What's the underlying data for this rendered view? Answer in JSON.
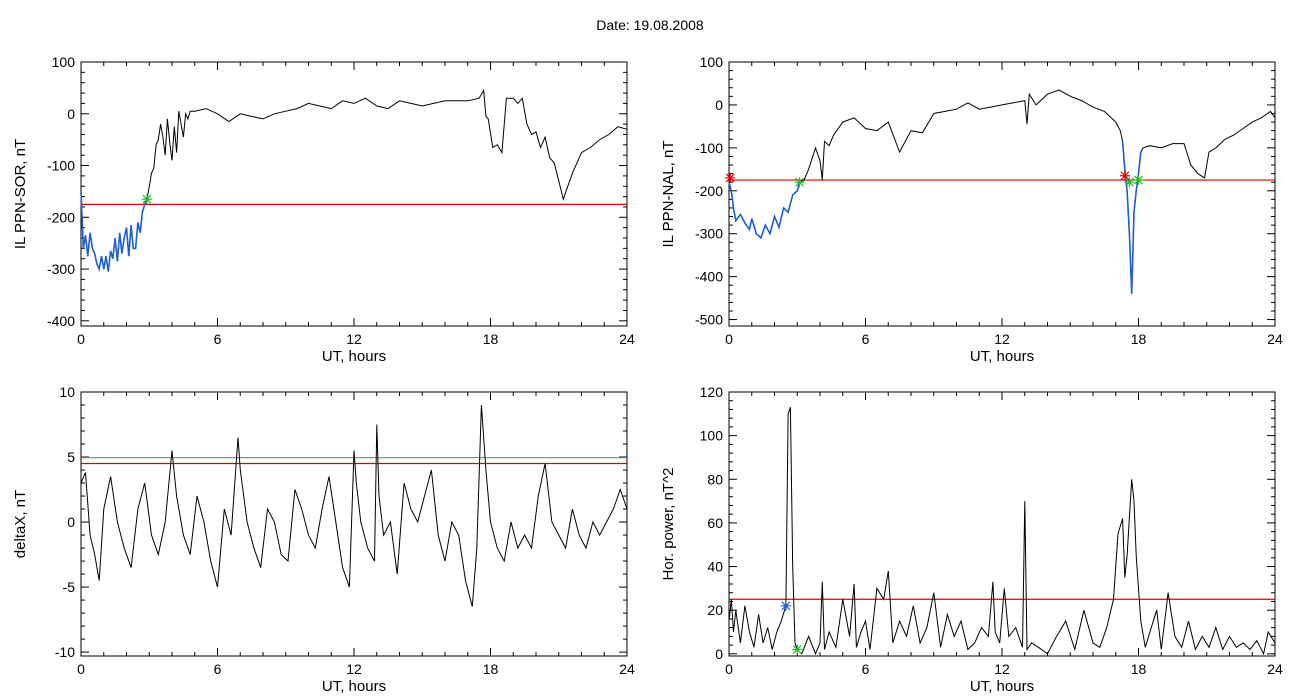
{
  "header": {
    "date_label": "Date:  19.08.2008"
  },
  "colors": {
    "trace": "#000000",
    "threshold": "#dd0000",
    "threshold2": "#3aa0a0",
    "highlight": "#1f5fcf",
    "marker_green": "#22bb22",
    "marker_red": "#dd0000"
  },
  "chart_data": [
    {
      "type": "line",
      "title": "",
      "xlabel": "UT, hours",
      "ylabel": "IL PPN-SOR, nT",
      "xlim": [
        0,
        24
      ],
      "ylim": [
        -410,
        100
      ],
      "xticks": [
        0,
        6,
        12,
        18,
        24
      ],
      "yticks": [
        -400,
        -300,
        -200,
        -100,
        0,
        100
      ],
      "threshold": -175,
      "highlight_range": [
        0,
        2.9
      ],
      "markers": [
        {
          "x": 2.9,
          "y": -165,
          "color": "green"
        }
      ],
      "series": [
        {
          "x": [
            0,
            0.1,
            0.2,
            0.3,
            0.4,
            0.5,
            0.6,
            0.7,
            0.8,
            0.9,
            1.0,
            1.1,
            1.2,
            1.3,
            1.4,
            1.5,
            1.6,
            1.7,
            1.8,
            1.9,
            2.0,
            2.1,
            2.2,
            2.3,
            2.4,
            2.5,
            2.6,
            2.7,
            2.8,
            2.9,
            3.0,
            3.1,
            3.2,
            3.3,
            3.4,
            3.5,
            3.6,
            3.7,
            3.8,
            3.9,
            4.0,
            4.1,
            4.2,
            4.3,
            4.4,
            4.5,
            4.6,
            4.7,
            4.8,
            5.0,
            5.5,
            6.0,
            6.5,
            7.0,
            7.5,
            8.0,
            8.5,
            9.0,
            9.5,
            10.0,
            10.5,
            11.0,
            11.5,
            12.0,
            12.5,
            13.0,
            13.5,
            14.0,
            14.5,
            15.0,
            15.5,
            16.0,
            16.5,
            17.0,
            17.5,
            17.7,
            17.8,
            17.9,
            18.1,
            18.3,
            18.5,
            18.7,
            19.0,
            19.2,
            19.4,
            19.6,
            19.8,
            20.0,
            20.2,
            20.4,
            20.6,
            20.8,
            21.0,
            21.2,
            21.4,
            21.6,
            22.0,
            22.4,
            22.8,
            23.2,
            23.6,
            24.0
          ],
          "values": [
            -150,
            -260,
            -235,
            -275,
            -230,
            -260,
            -270,
            -290,
            -300,
            -275,
            -300,
            -275,
            -305,
            -265,
            -280,
            -240,
            -285,
            -230,
            -270,
            -240,
            -220,
            -275,
            -215,
            -260,
            -260,
            -210,
            -230,
            -190,
            -175,
            -165,
            -140,
            -115,
            -105,
            -60,
            -50,
            -20,
            -45,
            -80,
            -10,
            -55,
            -90,
            -25,
            -75,
            5,
            -20,
            -45,
            0,
            -10,
            5,
            5,
            10,
            0,
            -15,
            0,
            -5,
            -10,
            0,
            5,
            10,
            20,
            15,
            10,
            25,
            20,
            30,
            15,
            10,
            25,
            20,
            15,
            20,
            25,
            25,
            25,
            30,
            45,
            -5,
            -10,
            -65,
            -60,
            -75,
            30,
            30,
            20,
            30,
            -20,
            -40,
            -35,
            -65,
            -45,
            -85,
            -95,
            -130,
            -165,
            -140,
            -115,
            -75,
            -65,
            -50,
            -40,
            -25,
            -30
          ]
        }
      ]
    },
    {
      "type": "line",
      "title": "",
      "xlabel": "UT, hours",
      "ylabel": "IL PPN-NAL, nT",
      "xlim": [
        0,
        24
      ],
      "ylim": [
        -515,
        100
      ],
      "xticks": [
        0,
        6,
        12,
        18,
        24
      ],
      "yticks": [
        -500,
        -400,
        -300,
        -200,
        -100,
        0,
        100
      ],
      "threshold": -175,
      "highlight_ranges": [
        [
          0,
          3.1
        ],
        [
          17.3,
          18.1
        ]
      ],
      "markers": [
        {
          "x": 0.05,
          "y": -170,
          "color": "red"
        },
        {
          "x": 3.1,
          "y": -180,
          "color": "green"
        },
        {
          "x": 17.4,
          "y": -165,
          "color": "red"
        },
        {
          "x": 17.6,
          "y": -180,
          "color": "green"
        },
        {
          "x": 18.0,
          "y": -175,
          "color": "green"
        }
      ],
      "series": [
        {
          "x": [
            0,
            0.1,
            0.2,
            0.3,
            0.5,
            0.7,
            0.9,
            1.0,
            1.2,
            1.4,
            1.6,
            1.8,
            2.0,
            2.2,
            2.4,
            2.6,
            2.8,
            3.0,
            3.1,
            3.3,
            3.5,
            3.8,
            4.0,
            4.1,
            4.2,
            4.4,
            4.6,
            5.0,
            5.5,
            6.0,
            6.5,
            7.0,
            7.5,
            8.0,
            8.5,
            9.0,
            9.5,
            10.0,
            10.5,
            11.0,
            11.5,
            12.0,
            12.5,
            13.0,
            13.1,
            13.2,
            13.5,
            14.0,
            14.5,
            15.0,
            15.5,
            16.0,
            16.5,
            17.0,
            17.2,
            17.3,
            17.4,
            17.5,
            17.6,
            17.7,
            17.8,
            17.9,
            18.0,
            18.1,
            18.2,
            18.5,
            19.0,
            19.5,
            20.0,
            20.3,
            20.6,
            20.9,
            21.1,
            21.4,
            21.8,
            22.2,
            22.6,
            23.0,
            23.4,
            23.8,
            24.0
          ],
          "values": [
            -180,
            -200,
            -240,
            -270,
            -255,
            -275,
            -290,
            -265,
            -300,
            -310,
            -280,
            -300,
            -260,
            -285,
            -240,
            -250,
            -210,
            -200,
            -180,
            -175,
            -150,
            -100,
            -130,
            -175,
            -85,
            -95,
            -70,
            -40,
            -30,
            -55,
            -60,
            -40,
            -110,
            -60,
            -65,
            -20,
            -15,
            -10,
            5,
            -10,
            -5,
            0,
            5,
            10,
            -45,
            25,
            0,
            25,
            35,
            20,
            10,
            -5,
            -15,
            -40,
            -60,
            -85,
            -150,
            -200,
            -300,
            -440,
            -250,
            -200,
            -160,
            -110,
            -100,
            -95,
            -100,
            -90,
            -90,
            -140,
            -160,
            -170,
            -110,
            -100,
            -80,
            -70,
            -55,
            -40,
            -30,
            -15,
            -30
          ]
        }
      ]
    },
    {
      "type": "line",
      "title": "",
      "xlabel": "UT, hours",
      "ylabel": "deltaX, nT",
      "xlim": [
        0,
        24
      ],
      "ylim": [
        -10.3,
        10
      ],
      "xticks": [
        0,
        6,
        12,
        18,
        24
      ],
      "yticks": [
        -10,
        -5,
        0,
        5,
        10
      ],
      "thresholds": [
        {
          "value": 4.5,
          "color": "red"
        },
        {
          "value": 4.95,
          "color": "teal"
        }
      ],
      "series": [
        {
          "x": [
            0,
            0.2,
            0.4,
            0.6,
            0.8,
            1.0,
            1.3,
            1.6,
            1.9,
            2.2,
            2.5,
            2.8,
            3.1,
            3.4,
            3.7,
            4.0,
            4.2,
            4.5,
            4.8,
            5.1,
            5.4,
            5.7,
            6.0,
            6.3,
            6.6,
            6.9,
            7.0,
            7.3,
            7.6,
            7.9,
            8.2,
            8.5,
            8.8,
            9.1,
            9.4,
            9.7,
            10.0,
            10.3,
            10.6,
            10.9,
            11.2,
            11.5,
            11.8,
            12.0,
            12.1,
            12.3,
            12.6,
            12.9,
            13.0,
            13.1,
            13.3,
            13.6,
            13.9,
            14.2,
            14.5,
            14.8,
            15.1,
            15.4,
            15.7,
            16.0,
            16.3,
            16.6,
            16.9,
            17.2,
            17.4,
            17.6,
            17.8,
            18.0,
            18.3,
            18.6,
            18.9,
            19.2,
            19.5,
            19.8,
            20.1,
            20.4,
            20.7,
            21.0,
            21.3,
            21.6,
            21.9,
            22.2,
            22.5,
            22.8,
            23.1,
            23.4,
            23.7,
            24.0
          ],
          "values": [
            3,
            3.8,
            -1,
            -2.5,
            -4.5,
            1,
            3.5,
            0,
            -2,
            -3.5,
            1,
            3,
            -1,
            -2.5,
            0,
            5.5,
            2,
            -1,
            -2.5,
            2,
            0,
            -3,
            -5,
            1,
            -1,
            6.5,
            4,
            0,
            -2,
            -3.5,
            1,
            0,
            -2.5,
            -3,
            2.5,
            1,
            -1,
            -2,
            1,
            3.5,
            0,
            -3.5,
            -5,
            5.5,
            3,
            0,
            -2,
            -3,
            7.5,
            2,
            -1,
            0,
            -4,
            3,
            1,
            0,
            2,
            4,
            -1,
            -3,
            0,
            -1,
            -4.5,
            -6.5,
            -2,
            9,
            4,
            0,
            -2,
            -3,
            0,
            -2,
            -1,
            -2,
            2,
            4.5,
            0,
            -1,
            -2,
            1,
            -1,
            -2,
            0,
            -1,
            0,
            1,
            2.5,
            1
          ]
        }
      ]
    },
    {
      "type": "line",
      "title": "",
      "xlabel": "UT, hours",
      "ylabel": "Hor. power, nT^2",
      "xlim": [
        0,
        24
      ],
      "ylim": [
        -1,
        120
      ],
      "xticks": [
        0,
        6,
        12,
        18,
        24
      ],
      "yticks": [
        0,
        20,
        40,
        60,
        80,
        100,
        120
      ],
      "threshold": 25,
      "markers": [
        {
          "x": 2.5,
          "y": 22,
          "color": "blue"
        },
        {
          "x": 3.0,
          "y": 2,
          "color": "green"
        }
      ],
      "series": [
        {
          "x": [
            0,
            0.1,
            0.2,
            0.3,
            0.5,
            0.7,
            0.9,
            1.1,
            1.3,
            1.5,
            1.7,
            1.9,
            2.1,
            2.3,
            2.5,
            2.6,
            2.7,
            2.8,
            2.9,
            3.0,
            3.2,
            3.5,
            3.8,
            4.0,
            4.1,
            4.2,
            4.4,
            4.7,
            5.0,
            5.3,
            5.5,
            5.6,
            5.8,
            6.0,
            6.2,
            6.5,
            6.8,
            7.0,
            7.2,
            7.5,
            7.8,
            8.1,
            8.4,
            8.7,
            9.0,
            9.3,
            9.6,
            9.9,
            10.2,
            10.5,
            10.8,
            11.1,
            11.4,
            11.6,
            11.7,
            11.9,
            12.1,
            12.3,
            12.6,
            12.9,
            13.0,
            13.1,
            13.3,
            13.6,
            14.0,
            14.4,
            14.8,
            15.2,
            15.6,
            16.0,
            16.3,
            16.6,
            16.9,
            17.1,
            17.3,
            17.4,
            17.5,
            17.7,
            17.8,
            17.9,
            18.1,
            18.3,
            18.5,
            18.8,
            19.0,
            19.3,
            19.6,
            19.9,
            20.2,
            20.5,
            20.8,
            21.1,
            21.4,
            21.7,
            22.0,
            22.3,
            22.6,
            22.9,
            23.2,
            23.5,
            23.7,
            24.0
          ],
          "values": [
            15,
            25,
            10,
            20,
            5,
            22,
            10,
            3,
            18,
            5,
            12,
            2,
            10,
            15,
            22,
            110,
            113,
            40,
            5,
            2,
            0,
            8,
            0,
            5,
            33,
            2,
            10,
            3,
            25,
            8,
            32,
            3,
            10,
            15,
            2,
            30,
            25,
            38,
            5,
            15,
            8,
            22,
            5,
            12,
            28,
            3,
            18,
            8,
            15,
            2,
            5,
            12,
            8,
            33,
            10,
            5,
            30,
            8,
            12,
            3,
            70,
            2,
            5,
            3,
            0,
            8,
            15,
            2,
            20,
            5,
            3,
            12,
            25,
            55,
            62,
            35,
            45,
            80,
            70,
            45,
            15,
            3,
            10,
            20,
            2,
            28,
            8,
            3,
            15,
            2,
            8,
            3,
            12,
            2,
            8,
            3,
            5,
            2,
            6,
            0,
            10,
            5
          ]
        }
      ]
    }
  ]
}
